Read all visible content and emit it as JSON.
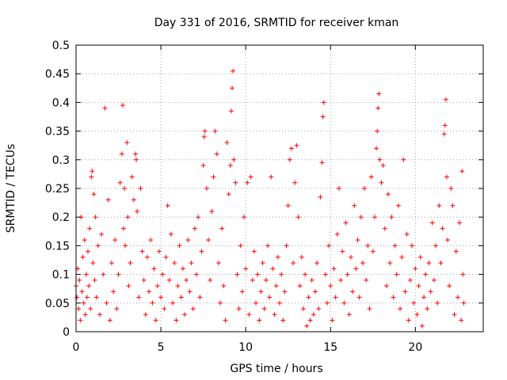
{
  "chart_data": {
    "type": "scatter",
    "title": "Day 331 of 2016, SRMTID for receiver kman",
    "xlabel": "GPS time / hours",
    "ylabel": "SRMTID / TECUs",
    "xlim": [
      0,
      24
    ],
    "ylim": [
      0,
      0.5
    ],
    "x_ticks": [
      0,
      5,
      10,
      15,
      20
    ],
    "x_tick_labels": [
      "0",
      "5",
      "10",
      "15",
      "20"
    ],
    "y_ticks": [
      0,
      0.05,
      0.1,
      0.15,
      0.2,
      0.25,
      0.3,
      0.35,
      0.4,
      0.45,
      0.5
    ],
    "y_tick_labels": [
      "0",
      "0.05",
      "0.1",
      "0.15",
      "0.2",
      "0.25",
      "0.3",
      "0.35",
      "0.4",
      "0.45",
      "0.5"
    ],
    "grid": true,
    "marker": "plus",
    "color": "#ff0000",
    "series": [
      {
        "points": [
          [
            0.0,
            0.08
          ],
          [
            0.05,
            0.06
          ],
          [
            0.1,
            0.11
          ],
          [
            0.15,
            0.04
          ],
          [
            0.2,
            0.09
          ],
          [
            0.25,
            0.02
          ],
          [
            0.3,
            0.2
          ],
          [
            0.35,
            0.07
          ],
          [
            0.4,
            0.13
          ],
          [
            0.45,
            0.05
          ],
          [
            0.5,
            0.16
          ],
          [
            0.55,
            0.03
          ],
          [
            0.6,
            0.1
          ],
          [
            0.65,
            0.06
          ],
          [
            0.7,
            0.14
          ],
          [
            0.75,
            0.08
          ],
          [
            0.8,
            0.18
          ],
          [
            0.85,
            0.04
          ],
          [
            0.9,
            0.27
          ],
          [
            0.95,
            0.28
          ],
          [
            1.0,
            0.12
          ],
          [
            1.05,
            0.24
          ],
          [
            1.1,
            0.09
          ],
          [
            1.15,
            0.2
          ],
          [
            1.2,
            0.06
          ],
          [
            1.3,
            0.15
          ],
          [
            1.4,
            0.03
          ],
          [
            1.5,
            0.17
          ],
          [
            1.6,
            0.1
          ],
          [
            1.7,
            0.39
          ],
          [
            1.8,
            0.05
          ],
          [
            1.9,
            0.23
          ],
          [
            2.0,
            0.02
          ],
          [
            2.1,
            0.12
          ],
          [
            2.2,
            0.07
          ],
          [
            2.3,
            0.16
          ],
          [
            2.4,
            0.04
          ],
          [
            2.5,
            0.1
          ],
          [
            2.6,
            0.26
          ],
          [
            2.7,
            0.31
          ],
          [
            2.75,
            0.395
          ],
          [
            2.8,
            0.18
          ],
          [
            2.85,
            0.25
          ],
          [
            2.9,
            0.15
          ],
          [
            3.0,
            0.33
          ],
          [
            3.05,
            0.2
          ],
          [
            3.1,
            0.08
          ],
          [
            3.2,
            0.12
          ],
          [
            3.3,
            0.27
          ],
          [
            3.4,
            0.23
          ],
          [
            3.5,
            0.31
          ],
          [
            3.55,
            0.3
          ],
          [
            3.6,
            0.21
          ],
          [
            3.7,
            0.06
          ],
          [
            3.8,
            0.25
          ],
          [
            3.9,
            0.14
          ],
          [
            4.0,
            0.09
          ],
          [
            4.1,
            0.03
          ],
          [
            4.2,
            0.13
          ],
          [
            4.3,
            0.07
          ],
          [
            4.4,
            0.16
          ],
          [
            4.5,
            0.05
          ],
          [
            4.6,
            0.11
          ],
          [
            4.7,
            0.02
          ],
          [
            4.8,
            0.08
          ],
          [
            4.9,
            0.14
          ],
          [
            5.0,
            0.06
          ],
          [
            5.1,
            0.1
          ],
          [
            5.2,
            0.04
          ],
          [
            5.3,
            0.13
          ],
          [
            5.4,
            0.22
          ],
          [
            5.5,
            0.09
          ],
          [
            5.6,
            0.17
          ],
          [
            5.7,
            0.05
          ],
          [
            5.8,
            0.12
          ],
          [
            5.9,
            0.02
          ],
          [
            6.0,
            0.08
          ],
          [
            6.1,
            0.15
          ],
          [
            6.2,
            0.06
          ],
          [
            6.3,
            0.11
          ],
          [
            6.4,
            0.03
          ],
          [
            6.5,
            0.09
          ],
          [
            6.6,
            0.16
          ],
          [
            6.7,
            0.07
          ],
          [
            6.8,
            0.12
          ],
          [
            6.9,
            0.04
          ],
          [
            7.0,
            0.18
          ],
          [
            7.1,
            0.1
          ],
          [
            7.2,
            0.2
          ],
          [
            7.3,
            0.06
          ],
          [
            7.4,
            0.14
          ],
          [
            7.5,
            0.29
          ],
          [
            7.55,
            0.34
          ],
          [
            7.6,
            0.35
          ],
          [
            7.7,
            0.25
          ],
          [
            7.8,
            0.16
          ],
          [
            7.9,
            0.09
          ],
          [
            8.0,
            0.21
          ],
          [
            8.1,
            0.27
          ],
          [
            8.2,
            0.35
          ],
          [
            8.3,
            0.31
          ],
          [
            8.4,
            0.12
          ],
          [
            8.5,
            0.05
          ],
          [
            8.6,
            0.18
          ],
          [
            8.7,
            0.08
          ],
          [
            8.8,
            0.02
          ],
          [
            8.9,
            0.33
          ],
          [
            9.0,
            0.24
          ],
          [
            9.1,
            0.29
          ],
          [
            9.15,
            0.385
          ],
          [
            9.2,
            0.425
          ],
          [
            9.25,
            0.455
          ],
          [
            9.3,
            0.3
          ],
          [
            9.4,
            0.26
          ],
          [
            9.5,
            0.1
          ],
          [
            9.6,
            0.04
          ],
          [
            9.7,
            0.15
          ],
          [
            9.8,
            0.07
          ],
          [
            9.9,
            0.2
          ],
          [
            10.0,
            0.11
          ],
          [
            10.1,
            0.26
          ],
          [
            10.2,
            0.03
          ],
          [
            10.3,
            0.27
          ],
          [
            10.4,
            0.09
          ],
          [
            10.5,
            0.14
          ],
          [
            10.6,
            0.05
          ],
          [
            10.7,
            0.1
          ],
          [
            10.8,
            0.02
          ],
          [
            10.9,
            0.07
          ],
          [
            11.0,
            0.12
          ],
          [
            11.1,
            0.04
          ],
          [
            11.2,
            0.09
          ],
          [
            11.3,
            0.15
          ],
          [
            11.4,
            0.06
          ],
          [
            11.5,
            0.27
          ],
          [
            11.6,
            0.11
          ],
          [
            11.7,
            0.03
          ],
          [
            11.8,
            0.08
          ],
          [
            11.9,
            0.13
          ],
          [
            12.0,
            0.05
          ],
          [
            12.1,
            0.1
          ],
          [
            12.2,
            0.02
          ],
          [
            12.3,
            0.07
          ],
          [
            12.4,
            0.15
          ],
          [
            12.5,
            0.22
          ],
          [
            12.6,
            0.3
          ],
          [
            12.7,
            0.32
          ],
          [
            12.8,
            0.12
          ],
          [
            12.9,
            0.26
          ],
          [
            13.0,
            0.325
          ],
          [
            13.1,
            0.2
          ],
          [
            13.2,
            0.08
          ],
          [
            13.3,
            0.13
          ],
          [
            13.4,
            0.04
          ],
          [
            13.5,
            0.1
          ],
          [
            13.6,
            0.01
          ],
          [
            13.7,
            0.06
          ],
          [
            13.8,
            0.02
          ],
          [
            13.9,
            0.09
          ],
          [
            14.0,
            0.03
          ],
          [
            14.1,
            0.07
          ],
          [
            14.2,
            0.12
          ],
          [
            14.3,
            0.04
          ],
          [
            14.4,
            0.235
          ],
          [
            14.5,
            0.295
          ],
          [
            14.55,
            0.375
          ],
          [
            14.6,
            0.4
          ],
          [
            14.7,
            0.1
          ],
          [
            14.8,
            0.05
          ],
          [
            14.9,
            0.15
          ],
          [
            15.0,
            0.08
          ],
          [
            15.1,
            0.02
          ],
          [
            15.2,
            0.11
          ],
          [
            15.3,
            0.06
          ],
          [
            15.4,
            0.17
          ],
          [
            15.5,
            0.25
          ],
          [
            15.6,
            0.09
          ],
          [
            15.7,
            0.14
          ],
          [
            15.8,
            0.05
          ],
          [
            15.9,
            0.19
          ],
          [
            16.0,
            0.1
          ],
          [
            16.1,
            0.03
          ],
          [
            16.2,
            0.13
          ],
          [
            16.3,
            0.07
          ],
          [
            16.4,
            0.22
          ],
          [
            16.5,
            0.11
          ],
          [
            16.6,
            0.16
          ],
          [
            16.7,
            0.06
          ],
          [
            16.8,
            0.2
          ],
          [
            16.9,
            0.12
          ],
          [
            17.0,
            0.25
          ],
          [
            17.1,
            0.09
          ],
          [
            17.2,
            0.15
          ],
          [
            17.3,
            0.04
          ],
          [
            17.4,
            0.27
          ],
          [
            17.5,
            0.14
          ],
          [
            17.6,
            0.2
          ],
          [
            17.7,
            0.32
          ],
          [
            17.75,
            0.35
          ],
          [
            17.8,
            0.39
          ],
          [
            17.85,
            0.415
          ],
          [
            17.9,
            0.3
          ],
          [
            18.0,
            0.26
          ],
          [
            18.1,
            0.29
          ],
          [
            18.2,
            0.18
          ],
          [
            18.3,
            0.08
          ],
          [
            18.4,
            0.24
          ],
          [
            18.5,
            0.12
          ],
          [
            18.6,
            0.2
          ],
          [
            18.7,
            0.06
          ],
          [
            18.8,
            0.15
          ],
          [
            18.9,
            0.1
          ],
          [
            19.0,
            0.22
          ],
          [
            19.1,
            0.04
          ],
          [
            19.2,
            0.13
          ],
          [
            19.3,
            0.3
          ],
          [
            19.4,
            0.07
          ],
          [
            19.5,
            0.17
          ],
          [
            19.6,
            0.02
          ],
          [
            19.7,
            0.09
          ],
          [
            19.8,
            0.15
          ],
          [
            19.9,
            0.05
          ],
          [
            20.0,
            0.11
          ],
          [
            20.1,
            0.03
          ],
          [
            20.2,
            0.08
          ],
          [
            20.3,
            0.13
          ],
          [
            20.4,
            0.01
          ],
          [
            20.5,
            0.06
          ],
          [
            20.6,
            0.1
          ],
          [
            20.7,
            0.04
          ],
          [
            20.8,
            0.12
          ],
          [
            20.9,
            0.07
          ],
          [
            21.0,
            0.19
          ],
          [
            21.1,
            0.09
          ],
          [
            21.2,
            0.15
          ],
          [
            21.3,
            0.05
          ],
          [
            21.4,
            0.22
          ],
          [
            21.5,
            0.12
          ],
          [
            21.6,
            0.18
          ],
          [
            21.7,
            0.345
          ],
          [
            21.75,
            0.36
          ],
          [
            21.8,
            0.405
          ],
          [
            21.85,
            0.27
          ],
          [
            21.9,
            0.16
          ],
          [
            22.0,
            0.08
          ],
          [
            22.1,
            0.25
          ],
          [
            22.2,
            0.22
          ],
          [
            22.3,
            0.03
          ],
          [
            22.4,
            0.14
          ],
          [
            22.5,
            0.06
          ],
          [
            22.6,
            0.19
          ],
          [
            22.7,
            0.02
          ],
          [
            22.75,
            0.28
          ],
          [
            22.8,
            0.1
          ],
          [
            22.85,
            0.05
          ]
        ]
      }
    ]
  }
}
